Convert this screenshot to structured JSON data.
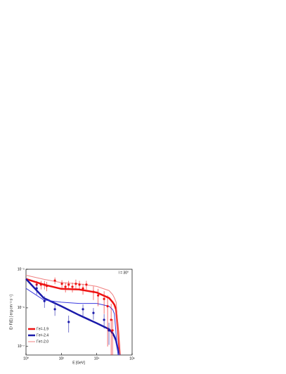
{
  "chart_data": {
    "type": "scatter-line",
    "annotation": "l = 30°",
    "x_label": "E [GeV]",
    "y_label": "E² F(E) [ erg cm⁻² s⁻¹]",
    "xlog": true,
    "ylog": true,
    "xlim": [
      1,
      1000000
    ],
    "ylim": [
      6e-08,
      1e-05
    ],
    "xticks": [
      {
        "value": 1,
        "label": "10⁰"
      },
      {
        "value": 100,
        "label": "10²"
      },
      {
        "value": 10000,
        "label": "10⁴"
      },
      {
        "value": 1000000,
        "label": "10⁶"
      }
    ],
    "yticks": [
      {
        "value": 1e-05,
        "label": "10⁻⁵"
      },
      {
        "value": 1e-06,
        "label": "10⁻⁶"
      },
      {
        "value": 1e-07,
        "label": "10⁻⁷"
      }
    ],
    "legend": "lower left",
    "lines": [
      {
        "name": "Γe=-1.9",
        "color": "#ee1111",
        "width": 2.5,
        "x": [
          1,
          10,
          100,
          1000,
          10000,
          50000,
          80000,
          100000,
          125000,
          160000,
          200000
        ],
        "values": [
          5.6e-06,
          4e-06,
          3.1e-06,
          3e-06,
          2.5e-06,
          1.8e-06,
          1.4e-06,
          1.2e-06,
          9e-07,
          2.6e-07,
          6e-08
        ]
      },
      {
        "name": "Γe=-2.4",
        "color": "#1a1aaa",
        "width": 2.5,
        "x": [
          1,
          10,
          100,
          1000,
          10000,
          50000,
          80000,
          100000,
          125000,
          160000,
          200000
        ],
        "values": [
          5.6e-06,
          1.8e-06,
          1.1e-06,
          6.5e-07,
          4e-07,
          2.8e-07,
          2.2e-07,
          1.8e-07,
          1.4e-07,
          8e-08,
          6e-08
        ]
      },
      {
        "name": "Γe=-2.0",
        "color": "#f08080",
        "width": 1,
        "x": [
          1,
          10,
          100,
          1000,
          10000,
          50000,
          80000,
          100000,
          125000,
          160000,
          200000
        ],
        "values": [
          7e-06,
          5.5e-06,
          4.5e-06,
          4.2e-06,
          3.6e-06,
          2.8e-06,
          2.2e-06,
          1.8e-06,
          1.4e-06,
          3e-07,
          6e-08
        ]
      },
      {
        "name": null,
        "color": "#3a3ae0",
        "width": 1,
        "x": [
          1,
          10,
          100,
          1000,
          10000,
          50000,
          80000,
          100000,
          125000,
          160000
        ],
        "values": [
          3.2e-06,
          1.6e-06,
          1.4e-06,
          1.3e-06,
          1.3e-06,
          1.1e-06,
          9e-07,
          7e-07,
          2e-07,
          6e-08
        ]
      }
    ],
    "points": [
      {
        "color": "#ee1111",
        "x": [
          4,
          7,
          11,
          15,
          43,
          107,
          170,
          260,
          420,
          660,
          1050,
          1660,
          2600,
          6500,
          12000,
          26000,
          41000,
          65000,
          78000
        ],
        "values": [
          4e-06,
          4e-06,
          4e-06,
          3.7e-06,
          5.1e-06,
          4.2e-06,
          3.5e-06,
          4e-06,
          3.5e-06,
          4.2e-06,
          4e-06,
          3.2e-06,
          4e-06,
          2.6e-06,
          2.1e-06,
          1.7e-06,
          1.1e-06,
          4.9e-07,
          2.6e-07
        ],
        "errors": [
          1e-06,
          1e-06,
          1e-06,
          1e-06,
          1e-06,
          1e-06,
          1e-06,
          1e-06,
          1e-06,
          1.2e-06,
          1e-06,
          1e-06,
          1e-06,
          1e-06,
          1e-06,
          1e-06,
          1e-06,
          8e-07,
          2.5e-07
        ]
      },
      {
        "color": "#1a1aaa",
        "x": [
          4,
          11,
          43,
          260,
          1660,
          6500,
          26000,
          49000
        ],
        "values": [
          3.2e-06,
          1.5e-06,
          9.2e-07,
          4.3e-07,
          9.2e-07,
          7.4e-07,
          4.9e-07,
          2.6e-07
        ],
        "errors": [
          1e-06,
          5e-07,
          3e-07,
          2e-07,
          3e-07,
          2.5e-07,
          2e-07,
          1.5e-07
        ]
      }
    ]
  }
}
